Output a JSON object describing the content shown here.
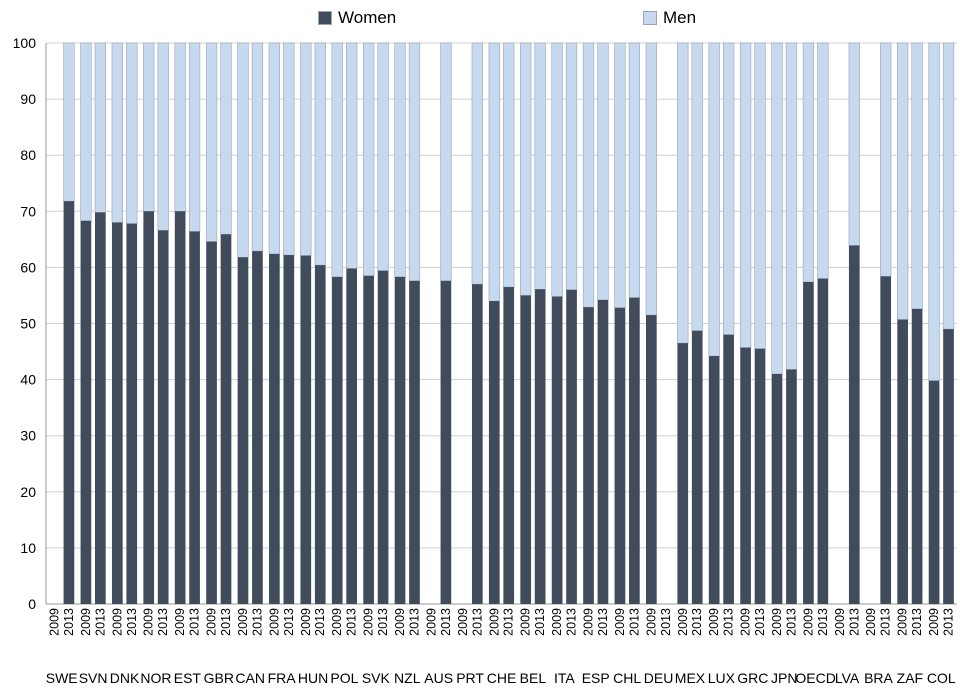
{
  "chart_data": {
    "type": "bar",
    "stacked": true,
    "title": "",
    "xlabel": "",
    "ylabel": "",
    "ylim": [
      0,
      100
    ],
    "yticks": [
      0,
      10,
      20,
      30,
      40,
      50,
      60,
      70,
      80,
      90,
      100
    ],
    "grid": true,
    "legend": {
      "position": "top",
      "entries": [
        "Women",
        "Men"
      ]
    },
    "colors": {
      "Women": "#404b5c",
      "Men": "#c6d9ef"
    },
    "groups": [
      {
        "country": "SWE",
        "bars": [
          {
            "year": "2009",
            "women": null
          },
          {
            "year": "2013",
            "women": 71.8
          }
        ]
      },
      {
        "country": "SVN",
        "bars": [
          {
            "year": "2009",
            "women": 68.3
          },
          {
            "year": "2013",
            "women": 69.8
          }
        ]
      },
      {
        "country": "DNK",
        "bars": [
          {
            "year": "2009",
            "women": 68.0
          },
          {
            "year": "2013",
            "women": 67.8
          }
        ]
      },
      {
        "country": "NOR",
        "bars": [
          {
            "year": "2009",
            "women": 70.0
          },
          {
            "year": "2013",
            "women": 66.6
          }
        ]
      },
      {
        "country": "EST",
        "bars": [
          {
            "year": "2009",
            "women": 70.0
          },
          {
            "year": "2013",
            "women": 66.4
          }
        ]
      },
      {
        "country": "GBR",
        "bars": [
          {
            "year": "2009",
            "women": 64.6
          },
          {
            "year": "2013",
            "women": 65.9
          }
        ]
      },
      {
        "country": "CAN",
        "bars": [
          {
            "year": "2009",
            "women": 61.8
          },
          {
            "year": "2013",
            "women": 62.9
          }
        ]
      },
      {
        "country": "FRA",
        "bars": [
          {
            "year": "2009",
            "women": 62.4
          },
          {
            "year": "2013",
            "women": 62.2
          }
        ]
      },
      {
        "country": "HUN",
        "bars": [
          {
            "year": "2009",
            "women": 62.1
          },
          {
            "year": "2013",
            "women": 60.4
          }
        ]
      },
      {
        "country": "POL",
        "bars": [
          {
            "year": "2009",
            "women": 58.3
          },
          {
            "year": "2013",
            "women": 59.8
          }
        ]
      },
      {
        "country": "SVK",
        "bars": [
          {
            "year": "2009",
            "women": 58.5
          },
          {
            "year": "2013",
            "women": 59.4
          }
        ]
      },
      {
        "country": "NZL",
        "bars": [
          {
            "year": "2009",
            "women": 58.3
          },
          {
            "year": "2013",
            "women": 57.6
          }
        ]
      },
      {
        "country": "AUS",
        "bars": [
          {
            "year": "2009",
            "women": null
          },
          {
            "year": "2013",
            "women": 57.6
          }
        ]
      },
      {
        "country": "PRT",
        "bars": [
          {
            "year": "2009",
            "women": null
          },
          {
            "year": "2013",
            "women": 57.0
          }
        ]
      },
      {
        "country": "CHE",
        "bars": [
          {
            "year": "2009",
            "women": 54.0
          },
          {
            "year": "2013",
            "women": 56.5
          }
        ]
      },
      {
        "country": "BEL",
        "bars": [
          {
            "year": "2009",
            "women": 55.0
          },
          {
            "year": "2013",
            "women": 56.1
          }
        ]
      },
      {
        "country": "ITA",
        "bars": [
          {
            "year": "2009",
            "women": 54.8
          },
          {
            "year": "2013",
            "women": 56.0
          }
        ]
      },
      {
        "country": "ESP",
        "bars": [
          {
            "year": "2009",
            "women": 52.9
          },
          {
            "year": "2013",
            "women": 54.2
          }
        ]
      },
      {
        "country": "CHL",
        "bars": [
          {
            "year": "2009",
            "women": 52.8
          },
          {
            "year": "2013",
            "women": 54.6
          }
        ]
      },
      {
        "country": "DEU",
        "bars": [
          {
            "year": "2009",
            "women": 51.5
          },
          {
            "year": "2013",
            "women": null
          }
        ]
      },
      {
        "country": "MEX",
        "bars": [
          {
            "year": "2009",
            "women": 46.5
          },
          {
            "year": "2013",
            "women": 48.7
          }
        ]
      },
      {
        "country": "LUX",
        "bars": [
          {
            "year": "2009",
            "women": 44.2
          },
          {
            "year": "2013",
            "women": 48.0
          }
        ]
      },
      {
        "country": "GRC",
        "bars": [
          {
            "year": "2009",
            "women": 45.7
          },
          {
            "year": "2013",
            "women": 45.5
          }
        ]
      },
      {
        "country": "JPN",
        "bars": [
          {
            "year": "2009",
            "women": 41.0
          },
          {
            "year": "2013",
            "women": 41.8
          }
        ]
      },
      {
        "country": "OECD",
        "bars": [
          {
            "year": "2009",
            "women": 57.4
          },
          {
            "year": "2013",
            "women": 58.0
          }
        ]
      },
      {
        "country": "LVA",
        "bars": [
          {
            "year": "2009",
            "women": null
          },
          {
            "year": "2013",
            "women": 63.9
          }
        ]
      },
      {
        "country": "BRA",
        "bars": [
          {
            "year": "2009",
            "women": null
          },
          {
            "year": "2013",
            "women": 58.4
          }
        ]
      },
      {
        "country": "ZAF",
        "bars": [
          {
            "year": "2009",
            "women": 50.7
          },
          {
            "year": "2013",
            "women": 52.6
          }
        ]
      },
      {
        "country": "COL",
        "bars": [
          {
            "year": "2009",
            "women": 39.8
          },
          {
            "year": "2013",
            "women": 49.0
          }
        ]
      }
    ]
  }
}
